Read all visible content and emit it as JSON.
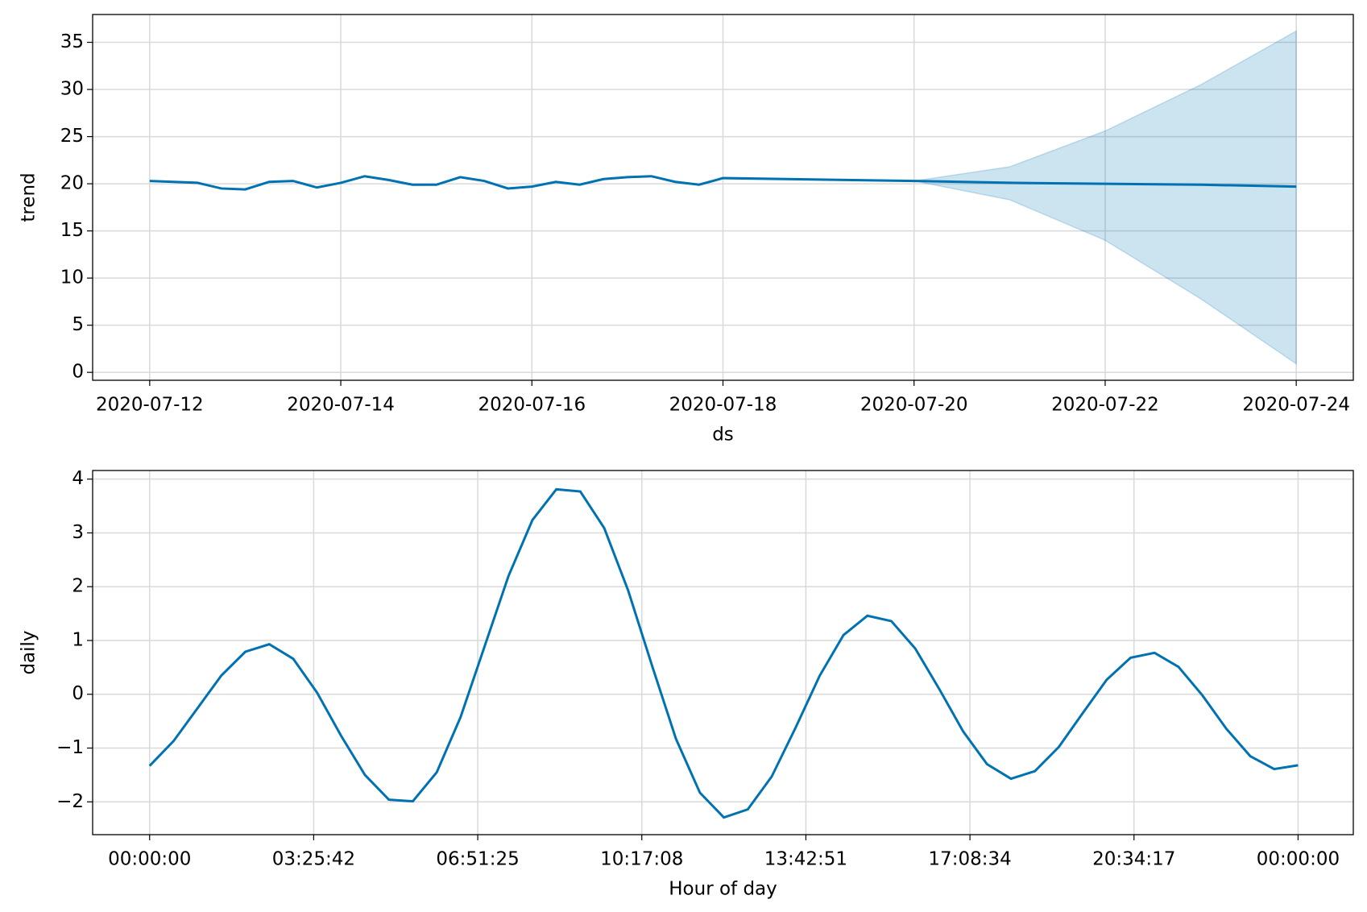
{
  "chart_data": [
    {
      "type": "line",
      "x": [
        "2020-07-12T00:00",
        "2020-07-12T06:00",
        "2020-07-12T12:00",
        "2020-07-12T18:00",
        "2020-07-13T00:00",
        "2020-07-13T06:00",
        "2020-07-13T12:00",
        "2020-07-13T18:00",
        "2020-07-14T00:00",
        "2020-07-14T06:00",
        "2020-07-14T12:00",
        "2020-07-14T18:00",
        "2020-07-15T00:00",
        "2020-07-15T06:00",
        "2020-07-15T12:00",
        "2020-07-15T18:00",
        "2020-07-16T00:00",
        "2020-07-16T06:00",
        "2020-07-16T12:00",
        "2020-07-16T18:00",
        "2020-07-17T00:00",
        "2020-07-17T06:00",
        "2020-07-17T12:00",
        "2020-07-17T18:00",
        "2020-07-18T00:00",
        "2020-07-20T00:00",
        "2020-07-21T00:00",
        "2020-07-22T00:00",
        "2020-07-23T00:00",
        "2020-07-24T00:00"
      ],
      "series": [
        {
          "color": "#0072b2",
          "values": [
            20.3,
            20.2,
            20.1,
            19.5,
            19.4,
            20.2,
            20.3,
            19.6,
            20.1,
            20.8,
            20.4,
            19.9,
            19.9,
            20.7,
            20.3,
            19.5,
            19.7,
            20.2,
            19.9,
            20.5,
            20.7,
            20.8,
            20.2,
            19.9,
            20.6,
            20.3,
            20.1,
            20.0,
            19.9,
            19.7
          ],
          "lower": [
            null,
            null,
            null,
            null,
            null,
            null,
            null,
            null,
            null,
            null,
            null,
            null,
            null,
            null,
            null,
            null,
            null,
            null,
            null,
            null,
            null,
            null,
            null,
            null,
            null,
            20.3,
            18.3,
            14.0,
            7.8,
            0.9
          ],
          "upper": [
            null,
            null,
            null,
            null,
            null,
            null,
            null,
            null,
            null,
            null,
            null,
            null,
            null,
            null,
            null,
            null,
            null,
            null,
            null,
            null,
            null,
            null,
            null,
            null,
            null,
            20.3,
            21.8,
            25.6,
            30.5,
            36.2
          ]
        }
      ],
      "xlim": [
        "2020-07-11T09:40",
        "2020-07-24T14:20"
      ],
      "xticks": [
        "2020-07-12",
        "2020-07-14",
        "2020-07-16",
        "2020-07-18",
        "2020-07-20",
        "2020-07-22",
        "2020-07-24"
      ],
      "ylim": [
        -0.84,
        37.95
      ],
      "yticks": [
        0,
        5,
        10,
        15,
        20,
        25,
        30,
        35
      ],
      "xlabel": "ds",
      "ylabel": "trend",
      "grid": true
    },
    {
      "type": "line",
      "x": [
        0,
        1800,
        3600,
        5400,
        7200,
        9000,
        10800,
        12600,
        14400,
        16200,
        18000,
        19800,
        21600,
        23400,
        25200,
        27000,
        28800,
        30600,
        32400,
        34200,
        36000,
        37800,
        39600,
        41400,
        43200,
        45000,
        46800,
        48600,
        50400,
        52200,
        54000,
        55800,
        57600,
        59400,
        61200,
        63000,
        64800,
        66600,
        68400,
        70200,
        72000,
        73800,
        75600,
        77400,
        79200,
        81000,
        82800,
        84600,
        86400
      ],
      "series": [
        {
          "color": "#0072b2",
          "values": [
            -1.33,
            -0.87,
            -0.26,
            0.35,
            0.79,
            0.93,
            0.66,
            0.03,
            -0.77,
            -1.5,
            -1.96,
            -1.99,
            -1.45,
            -0.42,
            0.89,
            2.2,
            3.24,
            3.81,
            3.77,
            3.09,
            1.93,
            0.53,
            -0.83,
            -1.83,
            -2.29,
            -2.14,
            -1.53,
            -0.62,
            0.34,
            1.1,
            1.46,
            1.36,
            0.85,
            0.1,
            -0.69,
            -1.3,
            -1.57,
            -1.43,
            -0.98,
            -0.35,
            0.27,
            0.68,
            0.77,
            0.51,
            -0.02,
            -0.64,
            -1.15,
            -1.39,
            -1.32
          ]
        }
      ],
      "xlim": [
        -4287,
        90555
      ],
      "xticks": [
        {
          "value": 0,
          "label": "00:00:00"
        },
        {
          "value": 12342,
          "label": "03:25:42"
        },
        {
          "value": 24685,
          "label": "06:51:25"
        },
        {
          "value": 37028,
          "label": "10:17:08"
        },
        {
          "value": 49371,
          "label": "13:42:51"
        },
        {
          "value": 61714,
          "label": "17:08:34"
        },
        {
          "value": 74057,
          "label": "20:34:17"
        },
        {
          "value": 86400,
          "label": "00:00:00"
        }
      ],
      "ylim": [
        -2.61,
        4.16
      ],
      "yticks": [
        {
          "value": -2,
          "label": "−2"
        },
        {
          "value": -1,
          "label": "−1"
        },
        0,
        1,
        2,
        3,
        4
      ],
      "xlabel": "Hour of day",
      "ylabel": "daily",
      "grid": true
    }
  ]
}
